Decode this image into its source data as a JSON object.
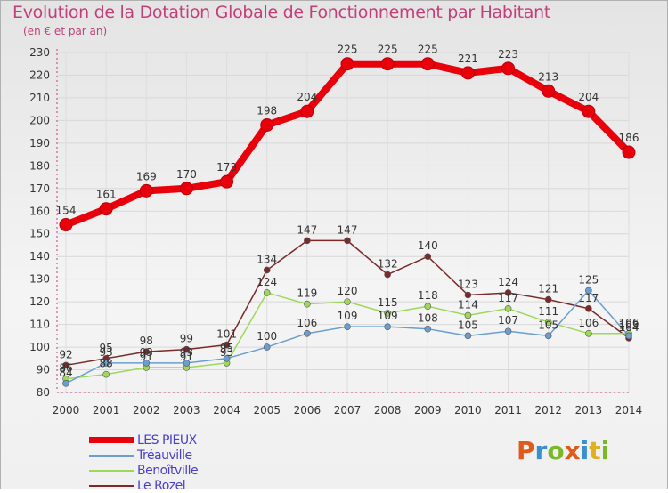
{
  "title": "Evolution de la Dotation Globale de Fonctionnement par Habitant",
  "subtitle": "(en € et par an)",
  "logo": {
    "text": "Proxiti",
    "colors": [
      "#e05a1a",
      "#3a8fd0",
      "#7ab829",
      "#e05a1a",
      "#3a8fd0",
      "#e0b020",
      "#7ab829"
    ]
  },
  "chart_data": {
    "type": "line",
    "title": "Evolution de la Dotation Globale de Fonctionnement par Habitant",
    "subtitle": "(en € et par an)",
    "xlabel": "",
    "ylabel": "",
    "ylim": [
      80,
      230
    ],
    "yticks": [
      80,
      90,
      100,
      110,
      120,
      130,
      140,
      150,
      160,
      170,
      180,
      190,
      200,
      210,
      220,
      230
    ],
    "categories": [
      "2000",
      "2001",
      "2002",
      "2003",
      "2004",
      "2005",
      "2006",
      "2007",
      "2008",
      "2009",
      "2010",
      "2011",
      "2012",
      "2013",
      "2014"
    ],
    "legend_position": "bottom-left",
    "series": [
      {
        "name": "LES PIEUX",
        "color": "#e8000b",
        "values": [
          154,
          161,
          169,
          170,
          173,
          198,
          204,
          225,
          225,
          225,
          221,
          223,
          213,
          204,
          186
        ]
      },
      {
        "name": "Tréauville",
        "color": "#6a9ed0",
        "values": [
          84,
          93,
          93,
          93,
          95,
          100,
          106,
          109,
          109,
          108,
          105,
          107,
          105,
          125,
          105
        ]
      },
      {
        "name": "Benoîtville",
        "color": "#9dd85a",
        "values": [
          86,
          88,
          91,
          91,
          93,
          124,
          119,
          120,
          115,
          118,
          114,
          117,
          111,
          106,
          106
        ]
      },
      {
        "name": "Le Rozel",
        "color": "#7a2a2a",
        "values": [
          92,
          95,
          98,
          99,
          101,
          134,
          147,
          147,
          132,
          140,
          123,
          124,
          121,
          117,
          104
        ]
      }
    ]
  }
}
